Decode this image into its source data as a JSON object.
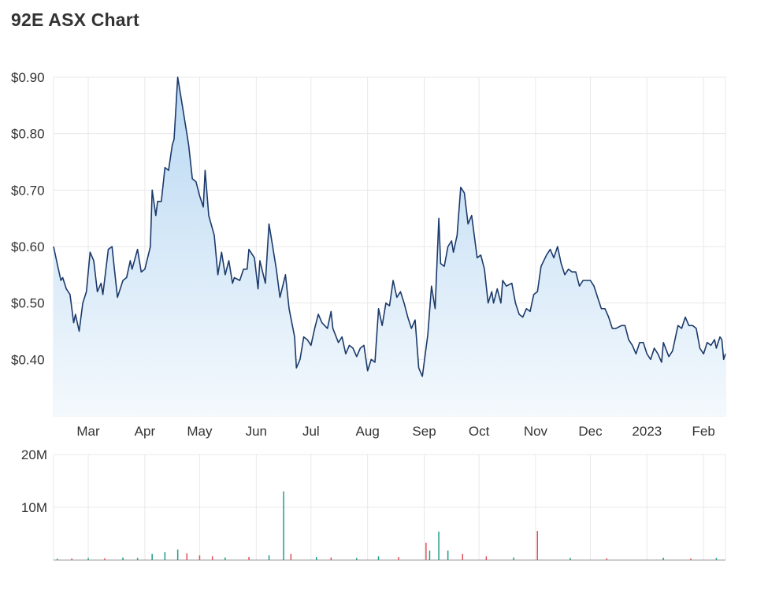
{
  "title": "92E ASX Chart",
  "colors": {
    "line": "#1b3a6b",
    "area_top": "#b9d8f2",
    "area_bottom": "#f4f9fd",
    "grid": "#e8e8e8",
    "volume_up": "#1f9d8a",
    "volume_down": "#e0525e"
  },
  "chart_data": [
    {
      "type": "area",
      "title": "92E ASX Chart",
      "xlabel": "",
      "ylabel": "",
      "x_ticks": [
        "Mar",
        "Apr",
        "May",
        "Jun",
        "Jul",
        "Aug",
        "Sep",
        "Oct",
        "Nov",
        "Dec",
        "2023",
        "Feb"
      ],
      "y_ticks": [
        "$0.40",
        "$0.50",
        "$0.60",
        "$0.70",
        "$0.80",
        "$0.90"
      ],
      "y_tick_values": [
        0.4,
        0.5,
        0.6,
        0.7,
        0.8,
        0.9
      ],
      "ylim": [
        0.3,
        0.9
      ],
      "x_range": [
        "2022-02-10",
        "2023-02-13"
      ],
      "grid": true,
      "series": [
        {
          "values": [
            [
              "2022-02-10",
              0.6
            ],
            [
              "2022-02-12",
              0.57
            ],
            [
              "2022-02-14",
              0.54
            ],
            [
              "2022-02-15",
              0.545
            ],
            [
              "2022-02-17",
              0.525
            ],
            [
              "2022-02-19",
              0.515
            ],
            [
              "2022-02-21",
              0.465
            ],
            [
              "2022-02-22",
              0.48
            ],
            [
              "2022-02-24",
              0.45
            ],
            [
              "2022-02-26",
              0.5
            ],
            [
              "2022-02-28",
              0.52
            ],
            [
              "2022-03-02",
              0.59
            ],
            [
              "2022-03-04",
              0.575
            ],
            [
              "2022-03-06",
              0.52
            ],
            [
              "2022-03-08",
              0.535
            ],
            [
              "2022-03-09",
              0.515
            ],
            [
              "2022-03-12",
              0.595
            ],
            [
              "2022-03-14",
              0.6
            ],
            [
              "2022-03-16",
              0.54
            ],
            [
              "2022-03-17",
              0.51
            ],
            [
              "2022-03-20",
              0.54
            ],
            [
              "2022-03-22",
              0.545
            ],
            [
              "2022-03-24",
              0.575
            ],
            [
              "2022-03-25",
              0.56
            ],
            [
              "2022-03-28",
              0.595
            ],
            [
              "2022-03-30",
              0.555
            ],
            [
              "2022-04-01",
              0.56
            ],
            [
              "2022-04-04",
              0.6
            ],
            [
              "2022-04-05",
              0.7
            ],
            [
              "2022-04-07",
              0.655
            ],
            [
              "2022-04-08",
              0.68
            ],
            [
              "2022-04-10",
              0.68
            ],
            [
              "2022-04-12",
              0.74
            ],
            [
              "2022-04-14",
              0.735
            ],
            [
              "2022-04-16",
              0.78
            ],
            [
              "2022-04-17",
              0.79
            ],
            [
              "2022-04-19",
              0.9
            ],
            [
              "2022-04-21",
              0.86
            ],
            [
              "2022-04-23",
              0.82
            ],
            [
              "2022-04-25",
              0.78
            ],
            [
              "2022-04-27",
              0.72
            ],
            [
              "2022-04-29",
              0.715
            ],
            [
              "2022-05-01",
              0.69
            ],
            [
              "2022-05-03",
              0.67
            ],
            [
              "2022-05-04",
              0.735
            ],
            [
              "2022-05-06",
              0.655
            ],
            [
              "2022-05-09",
              0.62
            ],
            [
              "2022-05-11",
              0.55
            ],
            [
              "2022-05-13",
              0.59
            ],
            [
              "2022-05-15",
              0.55
            ],
            [
              "2022-05-17",
              0.575
            ],
            [
              "2022-05-19",
              0.535
            ],
            [
              "2022-05-20",
              0.545
            ],
            [
              "2022-05-23",
              0.54
            ],
            [
              "2022-05-25",
              0.56
            ],
            [
              "2022-05-27",
              0.56
            ],
            [
              "2022-05-28",
              0.595
            ],
            [
              "2022-05-31",
              0.58
            ],
            [
              "2022-06-02",
              0.525
            ],
            [
              "2022-06-03",
              0.575
            ],
            [
              "2022-06-06",
              0.535
            ],
            [
              "2022-06-08",
              0.64
            ],
            [
              "2022-06-10",
              0.6
            ],
            [
              "2022-06-12",
              0.56
            ],
            [
              "2022-06-14",
              0.51
            ],
            [
              "2022-06-17",
              0.55
            ],
            [
              "2022-06-19",
              0.49
            ],
            [
              "2022-06-22",
              0.44
            ],
            [
              "2022-06-23",
              0.385
            ],
            [
              "2022-06-25",
              0.4
            ],
            [
              "2022-06-27",
              0.44
            ],
            [
              "2022-06-29",
              0.435
            ],
            [
              "2022-07-01",
              0.425
            ],
            [
              "2022-07-03",
              0.455
            ],
            [
              "2022-07-05",
              0.48
            ],
            [
              "2022-07-07",
              0.465
            ],
            [
              "2022-07-10",
              0.455
            ],
            [
              "2022-07-12",
              0.485
            ],
            [
              "2022-07-13",
              0.455
            ],
            [
              "2022-07-16",
              0.43
            ],
            [
              "2022-07-18",
              0.44
            ],
            [
              "2022-07-20",
              0.41
            ],
            [
              "2022-07-22",
              0.425
            ],
            [
              "2022-07-24",
              0.42
            ],
            [
              "2022-07-26",
              0.405
            ],
            [
              "2022-07-28",
              0.42
            ],
            [
              "2022-07-30",
              0.425
            ],
            [
              "2022-08-01",
              0.38
            ],
            [
              "2022-08-03",
              0.4
            ],
            [
              "2022-08-05",
              0.395
            ],
            [
              "2022-08-07",
              0.49
            ],
            [
              "2022-08-09",
              0.46
            ],
            [
              "2022-08-11",
              0.5
            ],
            [
              "2022-08-13",
              0.495
            ],
            [
              "2022-08-15",
              0.54
            ],
            [
              "2022-08-17",
              0.51
            ],
            [
              "2022-08-19",
              0.52
            ],
            [
              "2022-08-21",
              0.5
            ],
            [
              "2022-08-23",
              0.475
            ],
            [
              "2022-08-25",
              0.455
            ],
            [
              "2022-08-27",
              0.47
            ],
            [
              "2022-08-29",
              0.385
            ],
            [
              "2022-08-31",
              0.37
            ],
            [
              "2022-09-03",
              0.445
            ],
            [
              "2022-09-05",
              0.53
            ],
            [
              "2022-09-07",
              0.49
            ],
            [
              "2022-09-09",
              0.65
            ],
            [
              "2022-09-10",
              0.57
            ],
            [
              "2022-09-12",
              0.565
            ],
            [
              "2022-09-14",
              0.6
            ],
            [
              "2022-09-16",
              0.61
            ],
            [
              "2022-09-17",
              0.59
            ],
            [
              "2022-09-19",
              0.62
            ],
            [
              "2022-09-21",
              0.705
            ],
            [
              "2022-09-23",
              0.695
            ],
            [
              "2022-09-25",
              0.64
            ],
            [
              "2022-09-27",
              0.655
            ],
            [
              "2022-09-30",
              0.58
            ],
            [
              "2022-10-02",
              0.585
            ],
            [
              "2022-10-04",
              0.56
            ],
            [
              "2022-10-06",
              0.5
            ],
            [
              "2022-10-08",
              0.52
            ],
            [
              "2022-10-09",
              0.5
            ],
            [
              "2022-10-11",
              0.525
            ],
            [
              "2022-10-13",
              0.5
            ],
            [
              "2022-10-14",
              0.54
            ],
            [
              "2022-10-16",
              0.53
            ],
            [
              "2022-10-19",
              0.535
            ],
            [
              "2022-10-21",
              0.5
            ],
            [
              "2022-10-23",
              0.48
            ],
            [
              "2022-10-25",
              0.475
            ],
            [
              "2022-10-27",
              0.49
            ],
            [
              "2022-10-29",
              0.485
            ],
            [
              "2022-10-31",
              0.515
            ],
            [
              "2022-11-02",
              0.52
            ],
            [
              "2022-11-04",
              0.565
            ],
            [
              "2022-11-07",
              0.585
            ],
            [
              "2022-11-09",
              0.595
            ],
            [
              "2022-11-11",
              0.58
            ],
            [
              "2022-11-13",
              0.6
            ],
            [
              "2022-11-15",
              0.57
            ],
            [
              "2022-11-17",
              0.55
            ],
            [
              "2022-11-19",
              0.56
            ],
            [
              "2022-11-21",
              0.555
            ],
            [
              "2022-11-23",
              0.555
            ],
            [
              "2022-11-25",
              0.53
            ],
            [
              "2022-11-27",
              0.54
            ],
            [
              "2022-11-29",
              0.54
            ],
            [
              "2022-12-01",
              0.54
            ],
            [
              "2022-12-03",
              0.53
            ],
            [
              "2022-12-05",
              0.51
            ],
            [
              "2022-12-07",
              0.49
            ],
            [
              "2022-12-09",
              0.49
            ],
            [
              "2022-12-11",
              0.475
            ],
            [
              "2022-12-13",
              0.455
            ],
            [
              "2022-12-15",
              0.455
            ],
            [
              "2022-12-18",
              0.46
            ],
            [
              "2022-12-20",
              0.46
            ],
            [
              "2022-12-22",
              0.435
            ],
            [
              "2022-12-24",
              0.425
            ],
            [
              "2022-12-26",
              0.41
            ],
            [
              "2022-12-28",
              0.43
            ],
            [
              "2022-12-30",
              0.43
            ],
            [
              "2023-01-01",
              0.41
            ],
            [
              "2023-01-03",
              0.4
            ],
            [
              "2023-01-05",
              0.42
            ],
            [
              "2023-01-07",
              0.41
            ],
            [
              "2023-01-09",
              0.395
            ],
            [
              "2023-01-10",
              0.43
            ],
            [
              "2023-01-13",
              0.405
            ],
            [
              "2023-01-15",
              0.415
            ],
            [
              "2023-01-18",
              0.46
            ],
            [
              "2023-01-20",
              0.455
            ],
            [
              "2023-01-22",
              0.475
            ],
            [
              "2023-01-24",
              0.46
            ],
            [
              "2023-01-26",
              0.46
            ],
            [
              "2023-01-28",
              0.455
            ],
            [
              "2023-01-30",
              0.42
            ],
            [
              "2023-02-01",
              0.41
            ],
            [
              "2023-02-03",
              0.43
            ],
            [
              "2023-02-05",
              0.425
            ],
            [
              "2023-02-07",
              0.435
            ],
            [
              "2023-02-08",
              0.42
            ],
            [
              "2023-02-10",
              0.44
            ],
            [
              "2023-02-11",
              0.435
            ],
            [
              "2023-02-12",
              0.4
            ],
            [
              "2023-02-13",
              0.41
            ]
          ]
        }
      ]
    },
    {
      "type": "bar",
      "title": "",
      "xlabel": "",
      "ylabel": "",
      "y_ticks": [
        "10M",
        "20M"
      ],
      "y_tick_values": [
        10000000,
        20000000
      ],
      "ylim": [
        0,
        20000000
      ],
      "x_range": [
        "2022-02-10",
        "2023-02-13"
      ],
      "grid": true,
      "series": [
        {
          "values": [
            [
              "2022-02-12",
              250000,
              "up"
            ],
            [
              "2022-02-20",
              300000,
              "down"
            ],
            [
              "2022-03-01",
              400000,
              "up"
            ],
            [
              "2022-03-10",
              350000,
              "down"
            ],
            [
              "2022-03-20",
              500000,
              "up"
            ],
            [
              "2022-03-28",
              400000,
              "up"
            ],
            [
              "2022-04-05",
              1200000,
              "up"
            ],
            [
              "2022-04-12",
              1500000,
              "up"
            ],
            [
              "2022-04-19",
              2000000,
              "up"
            ],
            [
              "2022-04-24",
              1300000,
              "down"
            ],
            [
              "2022-05-01",
              900000,
              "down"
            ],
            [
              "2022-05-08",
              700000,
              "down"
            ],
            [
              "2022-05-15",
              500000,
              "up"
            ],
            [
              "2022-05-28",
              600000,
              "down"
            ],
            [
              "2022-06-08",
              900000,
              "up"
            ],
            [
              "2022-06-16",
              13000000,
              "up"
            ],
            [
              "2022-06-20",
              1200000,
              "down"
            ],
            [
              "2022-07-04",
              600000,
              "up"
            ],
            [
              "2022-07-12",
              500000,
              "down"
            ],
            [
              "2022-07-26",
              400000,
              "up"
            ],
            [
              "2022-08-07",
              700000,
              "up"
            ],
            [
              "2022-08-18",
              600000,
              "down"
            ],
            [
              "2022-09-02",
              3300000,
              "down"
            ],
            [
              "2022-09-04",
              1800000,
              "up"
            ],
            [
              "2022-09-09",
              5400000,
              "up"
            ],
            [
              "2022-09-14",
              1800000,
              "up"
            ],
            [
              "2022-09-22",
              1200000,
              "down"
            ],
            [
              "2022-10-05",
              700000,
              "down"
            ],
            [
              "2022-10-20",
              500000,
              "up"
            ],
            [
              "2022-11-02",
              5500000,
              "down"
            ],
            [
              "2022-11-20",
              400000,
              "up"
            ],
            [
              "2022-12-10",
              350000,
              "down"
            ],
            [
              "2023-01-10",
              450000,
              "up"
            ],
            [
              "2023-01-25",
              300000,
              "down"
            ],
            [
              "2023-02-08",
              400000,
              "up"
            ]
          ]
        }
      ]
    }
  ]
}
